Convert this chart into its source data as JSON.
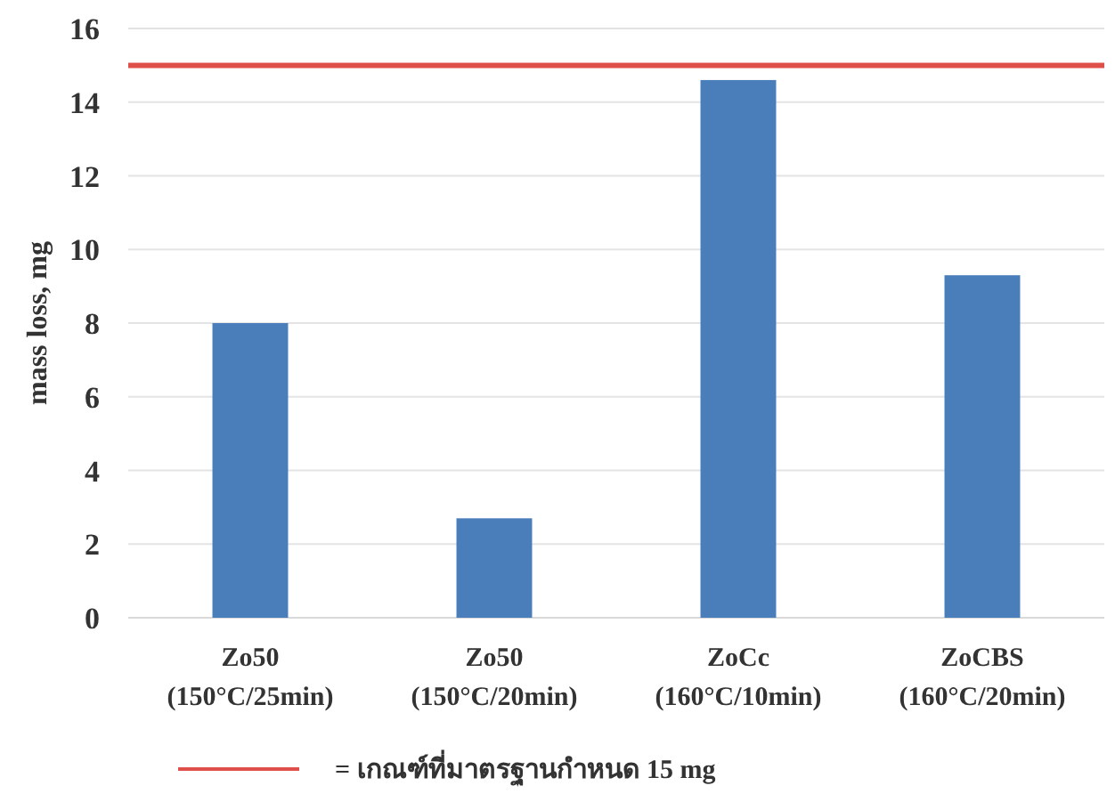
{
  "chart_data": {
    "type": "bar",
    "ylabel": "mass loss, mg",
    "categories": [
      "Zo50\n(150°C/25min)",
      "Zo50\n(150°C/20min)",
      "ZoCc\n(160°C/10min)",
      "ZoCBS\n(160°C/20min)"
    ],
    "values": [
      8.0,
      2.7,
      14.6,
      9.3
    ],
    "color": "#4a7ebb",
    "ylim": [
      0,
      16
    ],
    "yticks": [
      0,
      2,
      4,
      6,
      8,
      10,
      12,
      14,
      16
    ],
    "grid": "y",
    "legend": "bottom",
    "ref_lines": [
      {
        "axis": "y",
        "value": 15,
        "label": "= เกณฑ์ที่มาตรฐานกำหนด 15 mg",
        "color": "#e0504a"
      }
    ]
  }
}
